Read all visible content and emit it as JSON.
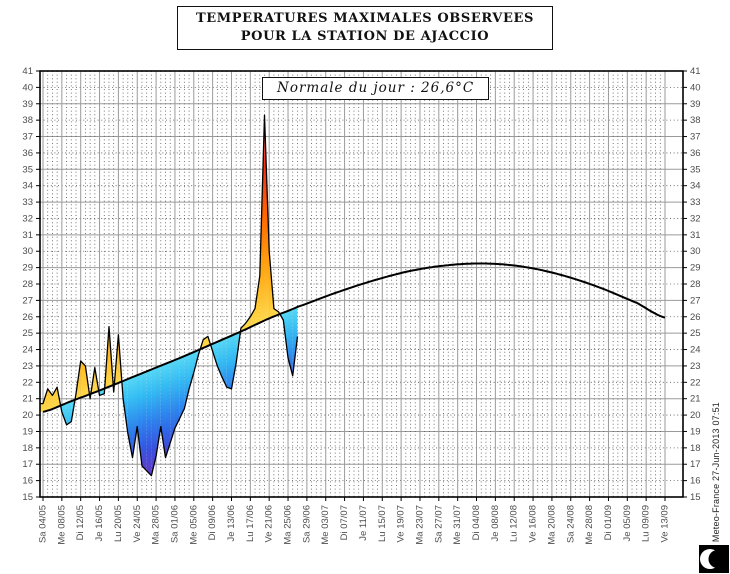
{
  "header": {
    "title_line1": "TEMPERATURES MAXIMALES OBSERVEES",
    "title_line2": "POUR LA STATION DE AJACCIO"
  },
  "plot": {
    "normale_label": "Normale du jour : 26,6°C"
  },
  "footer": {
    "credit": "Meteo-France 27-Jun-2013 07:51",
    "logo_name": "meteo-france-logo"
  },
  "chart_data": {
    "type": "line",
    "title": "TEMPERATURES MAXIMALES OBSERVEES POUR LA STATION DE AJACCIO",
    "annotation": "Normale du jour : 26,6°C",
    "ylabel": "",
    "xlabel": "",
    "ylim": [
      15,
      41
    ],
    "y_ticks": [
      15,
      16,
      17,
      18,
      19,
      20,
      21,
      22,
      23,
      24,
      25,
      26,
      27,
      28,
      29,
      30,
      31,
      32,
      33,
      34,
      35,
      36,
      37,
      38,
      39,
      40,
      41
    ],
    "x_tick_labels": [
      "Sa 04/05",
      "Me 08/05",
      "Di 12/05",
      "Je 16/05",
      "Lu 20/05",
      "Ve 24/05",
      "Ma 28/05",
      "Sa 01/06",
      "Me 05/06",
      "Di 09/06",
      "Je 13/06",
      "Lu 17/06",
      "Ve 21/06",
      "Ma 25/06",
      "Sa 29/06",
      "Me 03/07",
      "Di 07/07",
      "Je 11/07",
      "Lu 15/07",
      "Ve 19/07",
      "Ma 23/07",
      "Sa 27/07",
      "Me 31/07",
      "Di 04/08",
      "Je 08/08",
      "Lu 12/08",
      "Ve 16/08",
      "Ma 20/08",
      "Sa 24/08",
      "Me 28/08",
      "Di 01/09",
      "Je 05/09",
      "Lu 09/09",
      "Ve 13/09"
    ],
    "x_days_per_tick": 4,
    "x_total_days": 132,
    "grid": {
      "horizontal_solid_on": "odd",
      "horizontal_dotted_on": "even",
      "vertical_solid_every_days": 4,
      "vertical_dotted_every_days": 1
    },
    "series": [
      {
        "name": "temperature_observee",
        "start_day": 0,
        "step_days": 1,
        "values": [
          20.7,
          21.6,
          21.2,
          21.7,
          20.2,
          19.4,
          19.6,
          21.3,
          23.3,
          23.0,
          21.0,
          22.9,
          21.2,
          21.3,
          25.4,
          21.4,
          24.9,
          21.0,
          18.9,
          17.4,
          19.3,
          16.9,
          16.6,
          16.3,
          17.5,
          19.3,
          17.4,
          18.3,
          19.2,
          19.8,
          20.4,
          21.6,
          22.6,
          23.7,
          24.6,
          24.8,
          23.9,
          23.0,
          22.3,
          21.7,
          21.6,
          23.2,
          25.3,
          25.6,
          26.0,
          26.5,
          28.5,
          38.3,
          30.0,
          26.5,
          26.3,
          25.8,
          23.5,
          22.4,
          24.8
        ]
      },
      {
        "name": "normale",
        "points": [
          [
            0,
            20.2
          ],
          [
            6,
            20.85
          ],
          [
            12,
            21.5
          ],
          [
            18,
            22.2
          ],
          [
            24,
            22.9
          ],
          [
            30,
            23.6
          ],
          [
            36,
            24.35
          ],
          [
            42,
            25.1
          ],
          [
            48,
            25.9
          ],
          [
            54,
            26.6
          ],
          [
            62,
            27.45
          ],
          [
            70,
            28.2
          ],
          [
            78,
            28.8
          ],
          [
            86,
            29.15
          ],
          [
            94,
            29.25
          ],
          [
            102,
            29.05
          ],
          [
            110,
            28.55
          ],
          [
            118,
            27.8
          ],
          [
            126,
            26.85
          ],
          [
            132,
            25.95
          ]
        ]
      }
    ],
    "fill_colors": {
      "above_normal_ramp": [
        [
          0,
          "#FFD94F"
        ],
        [
          1.5,
          "#FFC228"
        ],
        [
          3,
          "#FFAA14"
        ],
        [
          5,
          "#FF8C00"
        ],
        [
          7,
          "#FF5500"
        ],
        [
          9,
          "#FF2600"
        ],
        [
          10.5,
          "#E93F3C"
        ],
        [
          11.8,
          "#E06058"
        ],
        [
          12.6,
          "#DC7A70"
        ]
      ],
      "below_normal_ramp": [
        [
          0,
          "#58D9F6"
        ],
        [
          1.5,
          "#30BAF3"
        ],
        [
          3,
          "#2E86EF"
        ],
        [
          4.5,
          "#2F5BE5"
        ],
        [
          5.6,
          "#4A3ED0"
        ],
        [
          6.8,
          "#7238C2"
        ]
      ]
    },
    "line_colors": {
      "observee": "#000000",
      "normale": "#000000"
    }
  }
}
